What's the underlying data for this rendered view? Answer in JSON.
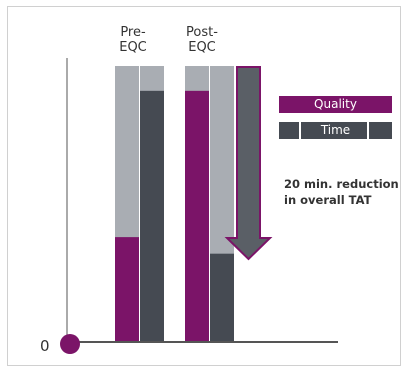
{
  "chart_data": {
    "type": "bar",
    "categories": [
      "Pre-\nEQC",
      "Post-\nEQC"
    ],
    "series": [
      {
        "name": "Quality",
        "values": [
          0.38,
          0.91
        ],
        "color": "#7b1468"
      },
      {
        "name": "Time",
        "values": [
          0.91,
          0.32
        ],
        "color": "#454a52"
      }
    ],
    "background_bar_color": "#a9adb3",
    "ylim": [
      0,
      1
    ],
    "y_tick_labels": [
      "0"
    ],
    "legend_position": "right",
    "annotation": "20 min. reduction\nin overall TAT",
    "arrow_color": "#5a5f66"
  }
}
